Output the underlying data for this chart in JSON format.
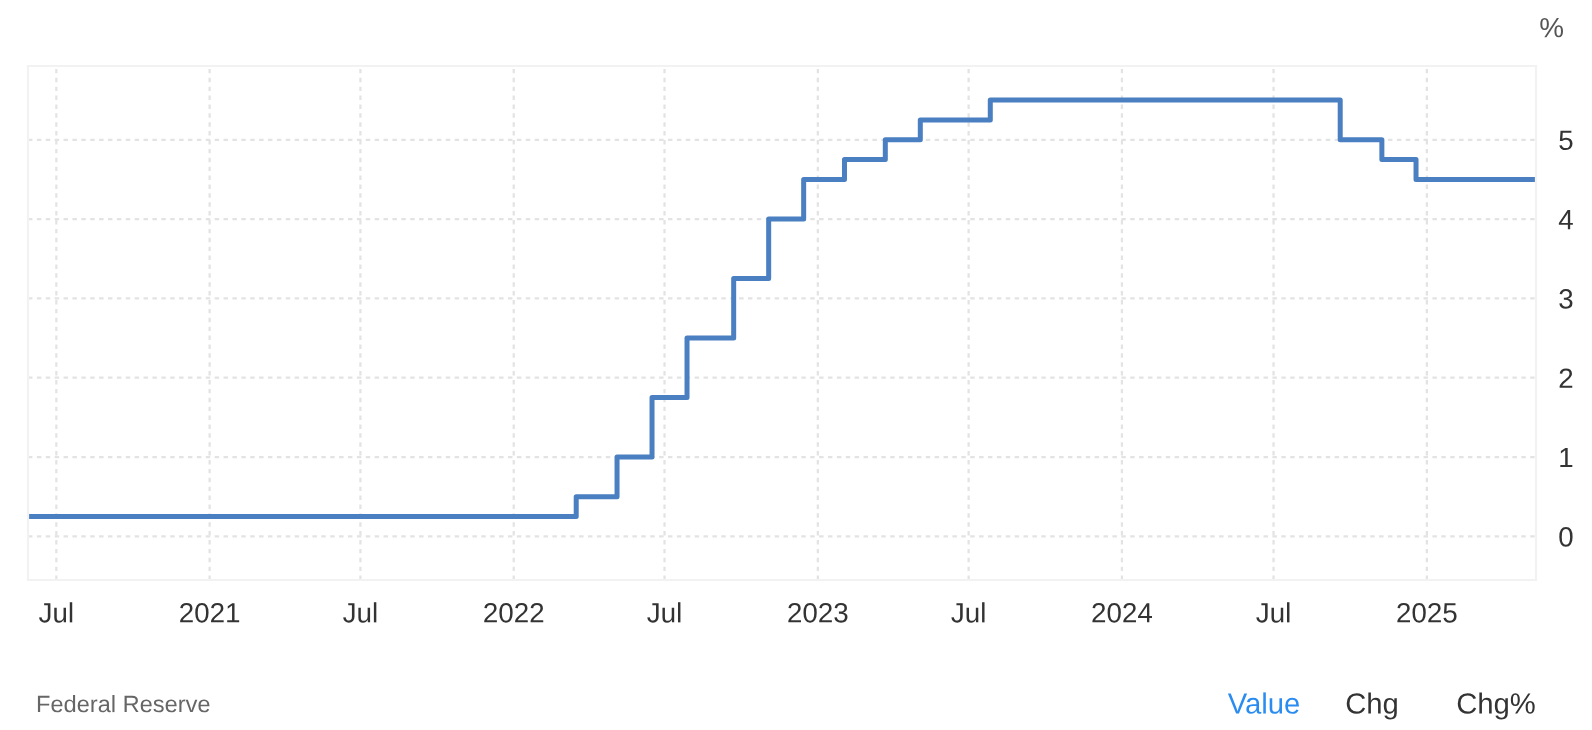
{
  "chart_data": {
    "type": "step",
    "ylabel": "%",
    "x": [
      "2020-05-28",
      "2022-03-17",
      "2022-05-05",
      "2022-06-16",
      "2022-07-28",
      "2022-09-22",
      "2022-11-03",
      "2022-12-15",
      "2023-02-02",
      "2023-03-23",
      "2023-05-04",
      "2023-07-27",
      "2024-09-19",
      "2024-11-08",
      "2024-12-19",
      "2025-05-12"
    ],
    "series": [
      {
        "color": "#4a7fc1",
        "values": [
          0.25,
          0.5,
          1,
          1.75,
          2.5,
          3.25,
          4,
          4.5,
          4.75,
          5,
          5.25,
          5.5,
          5,
          4.75,
          4.5,
          4.5
        ]
      }
    ],
    "xlim": [
      "2020-05-28",
      "2025-05-12"
    ],
    "xticks": [
      {
        "value": "2020-07-01",
        "label": "Jul"
      },
      {
        "value": "2021-01-01",
        "label": "2021"
      },
      {
        "value": "2021-07-01",
        "label": "Jul"
      },
      {
        "value": "2022-01-01",
        "label": "2022"
      },
      {
        "value": "2022-07-01",
        "label": "Jul"
      },
      {
        "value": "2023-01-01",
        "label": "2023"
      },
      {
        "value": "2023-07-01",
        "label": "Jul"
      },
      {
        "value": "2024-01-01",
        "label": "2024"
      },
      {
        "value": "2024-07-01",
        "label": "Jul"
      },
      {
        "value": "2025-01-01",
        "label": "2025"
      }
    ],
    "ylim": [
      -0.55,
      5.93
    ],
    "yticks": [
      0,
      1,
      2,
      3,
      4,
      5
    ],
    "grid": true,
    "line_style": "solid",
    "annotations": [
      "Federal Reserve",
      "Value",
      "Chg",
      "Chg%"
    ]
  }
}
